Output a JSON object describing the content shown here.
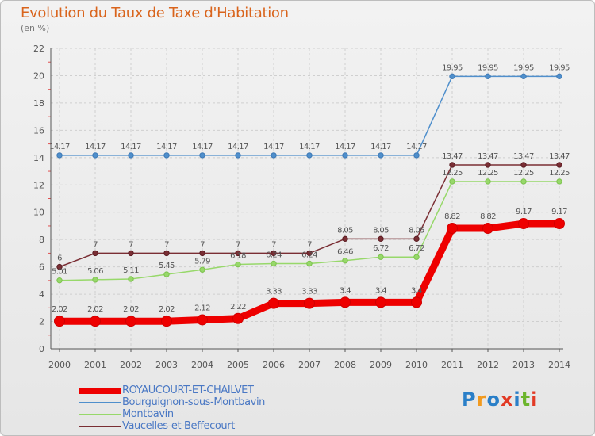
{
  "header": {
    "title": "Evolution du Taux de Taxe d'Habitation",
    "unit": "(en %)"
  },
  "brand": {
    "logo_text": "Proxiti",
    "logo_colors": [
      "#2a7fc8",
      "#f29a1f",
      "#2a7fc8",
      "#e23a25",
      "#2a7fc8",
      "#6cb52d",
      "#e23a25"
    ]
  },
  "chart_data": {
    "type": "line",
    "x": [
      "2000",
      "2001",
      "2002",
      "2003",
      "2004",
      "2005",
      "2006",
      "2007",
      "2008",
      "2009",
      "2010",
      "2011",
      "2012",
      "2013",
      "2014"
    ],
    "ylim": [
      0,
      22
    ],
    "yticks": [
      0,
      2,
      4,
      6,
      8,
      10,
      12,
      14,
      16,
      18,
      20,
      22
    ],
    "grid": true,
    "legend_position": "bottom-left",
    "series": [
      {
        "name": "ROYAUCOURT-ET-CHAILVET",
        "color": "#ee0000",
        "values": [
          2.02,
          2.02,
          2.02,
          2.02,
          2.12,
          2.22,
          3.33,
          3.33,
          3.4,
          3.4,
          3.4,
          8.82,
          8.82,
          9.17,
          9.17
        ],
        "labels": [
          "2.02",
          "2.02",
          "2.02",
          "2.02",
          "2.12",
          "2.22",
          "3.33",
          "3.33",
          "3.4",
          "3.4",
          "3.4",
          "8.82",
          "8.82",
          "9.17",
          "9.17"
        ]
      },
      {
        "name": "Bourguignon-sous-Montbavin",
        "color": "#4f8fcc",
        "values": [
          14.17,
          14.17,
          14.17,
          14.17,
          14.17,
          14.17,
          14.17,
          14.17,
          14.17,
          14.17,
          14.17,
          19.95,
          19.95,
          19.95,
          19.95
        ],
        "labels": [
          "14.17",
          "14.17",
          "14.17",
          "14.17",
          "14.17",
          "14.17",
          "14.17",
          "14.17",
          "14.17",
          "14.17",
          "14.17",
          "19.95",
          "19.95",
          "19.95",
          "19.95"
        ]
      },
      {
        "name": "Montbavin",
        "color": "#97d86a",
        "values": [
          5.01,
          5.06,
          5.11,
          5.45,
          5.79,
          6.18,
          6.24,
          6.24,
          6.46,
          6.72,
          6.72,
          12.25,
          12.25,
          12.25,
          12.25
        ],
        "labels": [
          "5.01",
          "5.06",
          "5.11",
          "5.45",
          "5.79",
          "6.18",
          "6.24",
          "6.24",
          "6.46",
          "6.72",
          "6.72",
          "12.25",
          "12.25",
          "12.25",
          "12.25"
        ]
      },
      {
        "name": "Vaucelles-et-Beffecourt",
        "color": "#7a2e34",
        "values": [
          6,
          7,
          7,
          7,
          7,
          7,
          7,
          7,
          8.05,
          8.05,
          8.05,
          13.47,
          13.47,
          13.47,
          13.47
        ],
        "labels": [
          "6",
          "7",
          "7",
          "7",
          "7",
          "7",
          "7",
          "7",
          "8.05",
          "8.05",
          "8.05",
          "13.47",
          "13.47",
          "13.47",
          "13.47"
        ]
      }
    ]
  }
}
